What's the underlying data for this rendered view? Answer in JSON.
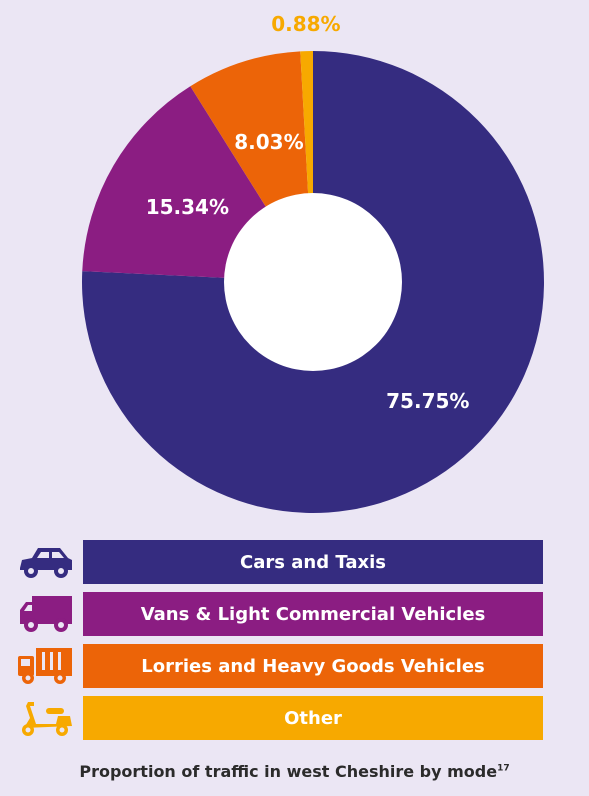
{
  "chart_data": {
    "type": "pie",
    "categories": [
      "Cars and Taxis",
      "Vans & Light Commercial Vehicles",
      "Lorries and Heavy Goods Vehicles",
      "Other"
    ],
    "values": [
      75.75,
      15.34,
      8.03,
      0.88
    ],
    "data_labels": [
      "75.75%",
      "15.34%",
      "8.03%",
      "0.88%"
    ],
    "colors": [
      "#352c80",
      "#8b1d82",
      "#ec6408",
      "#f7a900"
    ],
    "donut": true
  },
  "legend": {
    "items": [
      {
        "label": "Cars and Taxis",
        "icon": "car-icon",
        "color": "#352c80"
      },
      {
        "label": "Vans & Light Commercial Vehicles",
        "icon": "van-icon",
        "color": "#8b1d82"
      },
      {
        "label": "Lorries and Heavy Goods Vehicles",
        "icon": "lorry-icon",
        "color": "#ec6408"
      },
      {
        "label": "Other",
        "icon": "scooter-icon",
        "color": "#f7a900"
      }
    ]
  },
  "caption": {
    "text": "Proportion of traffic in west Cheshire by mode",
    "superscript": "17"
  }
}
